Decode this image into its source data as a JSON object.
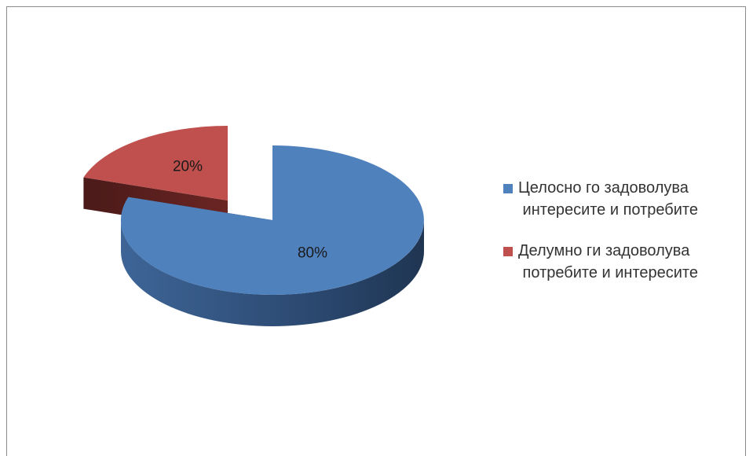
{
  "chart_data": {
    "type": "pie",
    "categories": [
      "Целосно го задоволува интересите и потребите",
      "Делумно ги задоволува потребите и интересите"
    ],
    "values": [
      80,
      20
    ],
    "value_labels": [
      "80%",
      "20%"
    ],
    "colors": [
      "#4f81bd",
      "#c0504d"
    ],
    "legend": "right"
  }
}
